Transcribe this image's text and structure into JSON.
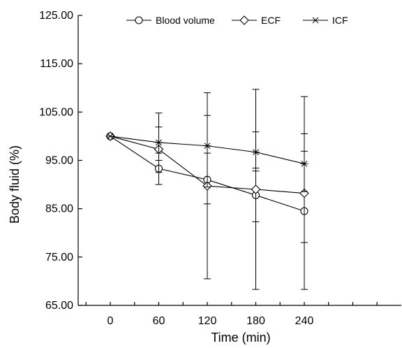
{
  "chart_data": {
    "type": "line",
    "xlabel": "Time (min)",
    "ylabel": "Body fluid (%)",
    "x": [
      0,
      60,
      120,
      180,
      240
    ],
    "x_tick_labels": [
      "0",
      "60",
      "120",
      "180",
      "240"
    ],
    "y_tick_labels": [
      "65.00",
      "75.00",
      "85.00",
      "95.00",
      "105.00",
      "115.00",
      "125.00"
    ],
    "ylim": [
      65,
      125
    ],
    "legend_position": "top",
    "series": [
      {
        "name": "Blood volume",
        "marker": "circle",
        "values": [
          100,
          93.3,
          91,
          87.8,
          84.5
        ],
        "error_low": [
          100,
          90,
          70.5,
          68.3,
          68.3
        ],
        "error_high": [
          100,
          96.5,
          104.3,
          100.9,
          100.5
        ]
      },
      {
        "name": "ECF",
        "marker": "diamond",
        "values": [
          100,
          97.3,
          89.7,
          89,
          88.2
        ],
        "error_low": [
          100,
          92.5,
          86,
          82.3,
          78
        ],
        "error_high": [
          100,
          101.9,
          96.5,
          93.4,
          96.9
        ]
      },
      {
        "name": "ICF",
        "marker": "asterisk",
        "values": [
          100,
          98.7,
          98,
          96.7,
          94.3
        ],
        "error_low": [
          100,
          95,
          89.5,
          92.8,
          88.5
        ],
        "error_high": [
          100,
          104.8,
          109,
          109.7,
          108.2
        ]
      }
    ]
  }
}
